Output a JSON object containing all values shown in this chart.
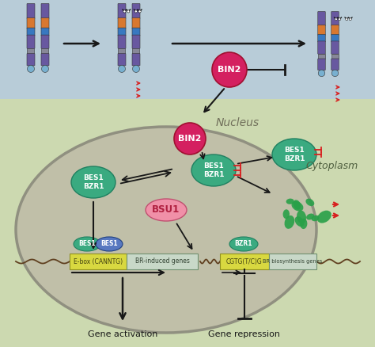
{
  "bg_cytoplasm": "#ccd9b0",
  "bg_sky": "#b8ccd8",
  "bg_nucleus_fill": "#c0bfa8",
  "bg_nucleus_edge": "#909080",
  "color_BIN2": "#d42060",
  "color_BSU1": "#f090a8",
  "color_BES1_BZR1": "#3aaa80",
  "color_BES1_blue": "#5878c0",
  "color_purple": "#6858a0",
  "color_orange": "#d87830",
  "color_blue_stripe": "#3878c0",
  "color_lightblue": "#78b0d0",
  "color_red": "#d82020",
  "color_green": "#28a048",
  "color_black": "#181818",
  "color_dna_yellow": "#d8d840",
  "color_dna_grey": "#c8d8c8",
  "text_nucleus": "Nucleus",
  "text_cytoplasm": "Cytoplasm",
  "text_gene_act": "Gene activation",
  "text_gene_rep": "Gene repression",
  "label_BIN2": "BIN2",
  "label_BSU1": "BSU1",
  "label_BES1_BZR1": "BES1\nBZR1",
  "label_BZR1": "BZR1",
  "label_ebox": "E-box (CANNTG)",
  "label_br_induced": "BR-induced genes",
  "label_cgtg": "CGTG(T/C)G",
  "label_br_bio": "BR biosynthesis genes"
}
